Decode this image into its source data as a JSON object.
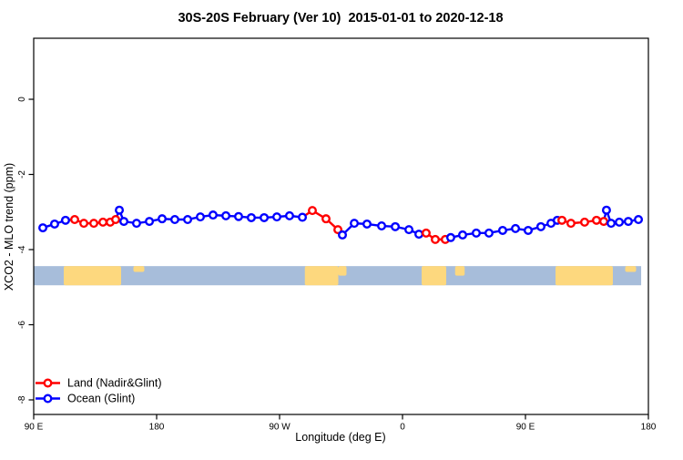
{
  "chart_data": {
    "type": "line",
    "title": "30S-20S February (Ver 10)  2015-01-01 to 2020-12-18",
    "xlabel": "Longitude (deg E)",
    "ylabel": "XCO2 - MLO trend (ppm)",
    "xlim": [
      90,
      540
    ],
    "ylim": [
      -8.4,
      1.6
    ],
    "grid": false,
    "x_ticks": [
      {
        "lon": 90,
        "label": "90 E"
      },
      {
        "lon": 180,
        "label": "180"
      },
      {
        "lon": 270,
        "label": "90 W"
      },
      {
        "lon": 360,
        "label": "0"
      },
      {
        "lon": 450,
        "label": "90 E"
      },
      {
        "lon": 540,
        "label": "180"
      }
    ],
    "y_ticks": [
      {
        "val": 0,
        "label": "0"
      },
      {
        "val": -2,
        "label": "-2"
      },
      {
        "val": -4,
        "label": "-4"
      },
      {
        "val": -6,
        "label": "-6"
      },
      {
        "val": -8,
        "label": "-8"
      }
    ],
    "colors": {
      "land": "#ff0000",
      "ocean": "#0000ff",
      "map_ocean": "#a7bdda",
      "map_land": "#fdd87e",
      "marker_fill": "#ffffff"
    },
    "legend": {
      "position": "bottom-left",
      "entries": [
        {
          "label": "Land (Nadir&Glint)",
          "src": "L"
        },
        {
          "label": "Ocean (Glint)",
          "src": "O"
        }
      ]
    },
    "map_strip": {
      "lon0": 90,
      "lon1": 534.7,
      "val_top": -4.44,
      "val_bottom": -4.95,
      "land_regions": [
        {
          "name": "australia",
          "lon0": 112,
          "lon1": 154,
          "top": 0,
          "bottom": 1
        },
        {
          "name": "melanesia",
          "lon0": 163,
          "lon1": 171,
          "top": 0,
          "bottom": 0.3
        },
        {
          "name": "south-america",
          "lon0": 288.5,
          "lon1": 313,
          "top": 0,
          "bottom": 1
        },
        {
          "name": "south-america-east",
          "lon0": 313,
          "lon1": 319,
          "top": 0,
          "bottom": 0.5
        },
        {
          "name": "southern-africa",
          "lon0": 374,
          "lon1": 392,
          "top": 0,
          "bottom": 1
        },
        {
          "name": "madagascar",
          "lon0": 398.5,
          "lon1": 405.5,
          "top": 0,
          "bottom": 0.5
        },
        {
          "name": "australia-2",
          "lon0": 472,
          "lon1": 514,
          "top": 0,
          "bottom": 1
        },
        {
          "name": "melanesia-2",
          "lon0": 523,
          "lon1": 531,
          "top": 0,
          "bottom": 0.3
        }
      ]
    },
    "series_points": [
      [
        96.7,
        -3.42,
        "O"
      ],
      [
        105.3,
        -3.32,
        "O"
      ],
      [
        113.3,
        -3.22,
        "O"
      ],
      [
        120.0,
        -3.2,
        "L"
      ],
      [
        126.7,
        -3.3,
        "L"
      ],
      [
        134.0,
        -3.3,
        "L"
      ],
      [
        140.7,
        -3.27,
        "L"
      ],
      [
        146.0,
        -3.27,
        "L"
      ],
      [
        150.0,
        -3.2,
        "L"
      ],
      [
        152.7,
        -2.95,
        "O"
      ],
      [
        156.0,
        -3.25,
        "O"
      ],
      [
        165.3,
        -3.3,
        "O"
      ],
      [
        174.7,
        -3.25,
        "O"
      ],
      [
        184.0,
        -3.18,
        "O"
      ],
      [
        193.3,
        -3.2,
        "O"
      ],
      [
        202.7,
        -3.2,
        "O"
      ],
      [
        212.0,
        -3.13,
        "O"
      ],
      [
        221.3,
        -3.08,
        "O"
      ],
      [
        230.7,
        -3.1,
        "O"
      ],
      [
        240.0,
        -3.12,
        "O"
      ],
      [
        249.3,
        -3.15,
        "O"
      ],
      [
        258.7,
        -3.15,
        "O"
      ],
      [
        268.0,
        -3.13,
        "O"
      ],
      [
        277.3,
        -3.1,
        "O"
      ],
      [
        286.7,
        -3.14,
        "O"
      ],
      [
        294.0,
        -2.96,
        "L"
      ],
      [
        304.0,
        -3.18,
        "L"
      ],
      [
        312.7,
        -3.47,
        "L"
      ],
      [
        316.0,
        -3.61,
        "O"
      ],
      [
        324.7,
        -3.3,
        "O"
      ],
      [
        334.0,
        -3.32,
        "O"
      ],
      [
        344.7,
        -3.37,
        "O"
      ],
      [
        354.7,
        -3.39,
        "O"
      ],
      [
        364.7,
        -3.47,
        "O"
      ],
      [
        372.0,
        -3.59,
        "O"
      ],
      [
        377.3,
        -3.56,
        "L"
      ],
      [
        384.0,
        -3.73,
        "L"
      ],
      [
        391.3,
        -3.73,
        "L"
      ],
      [
        395.3,
        -3.68,
        "O"
      ],
      [
        404.0,
        -3.61,
        "O"
      ],
      [
        414.0,
        -3.56,
        "O"
      ],
      [
        423.3,
        -3.56,
        "O"
      ],
      [
        433.3,
        -3.49,
        "O"
      ],
      [
        442.7,
        -3.44,
        "O"
      ],
      [
        452.0,
        -3.49,
        "O"
      ],
      [
        461.3,
        -3.39,
        "O"
      ],
      [
        468.7,
        -3.3,
        "O"
      ],
      [
        473.3,
        -3.22,
        "O"
      ],
      [
        476.7,
        -3.22,
        "L"
      ],
      [
        483.3,
        -3.3,
        "L"
      ],
      [
        493.3,
        -3.27,
        "L"
      ],
      [
        502.0,
        -3.22,
        "L"
      ],
      [
        507.3,
        -3.25,
        "L"
      ],
      [
        509.3,
        -2.95,
        "O"
      ],
      [
        512.7,
        -3.3,
        "O"
      ],
      [
        518.7,
        -3.27,
        "O"
      ],
      [
        525.3,
        -3.25,
        "O"
      ],
      [
        532.7,
        -3.2,
        "O"
      ]
    ]
  }
}
